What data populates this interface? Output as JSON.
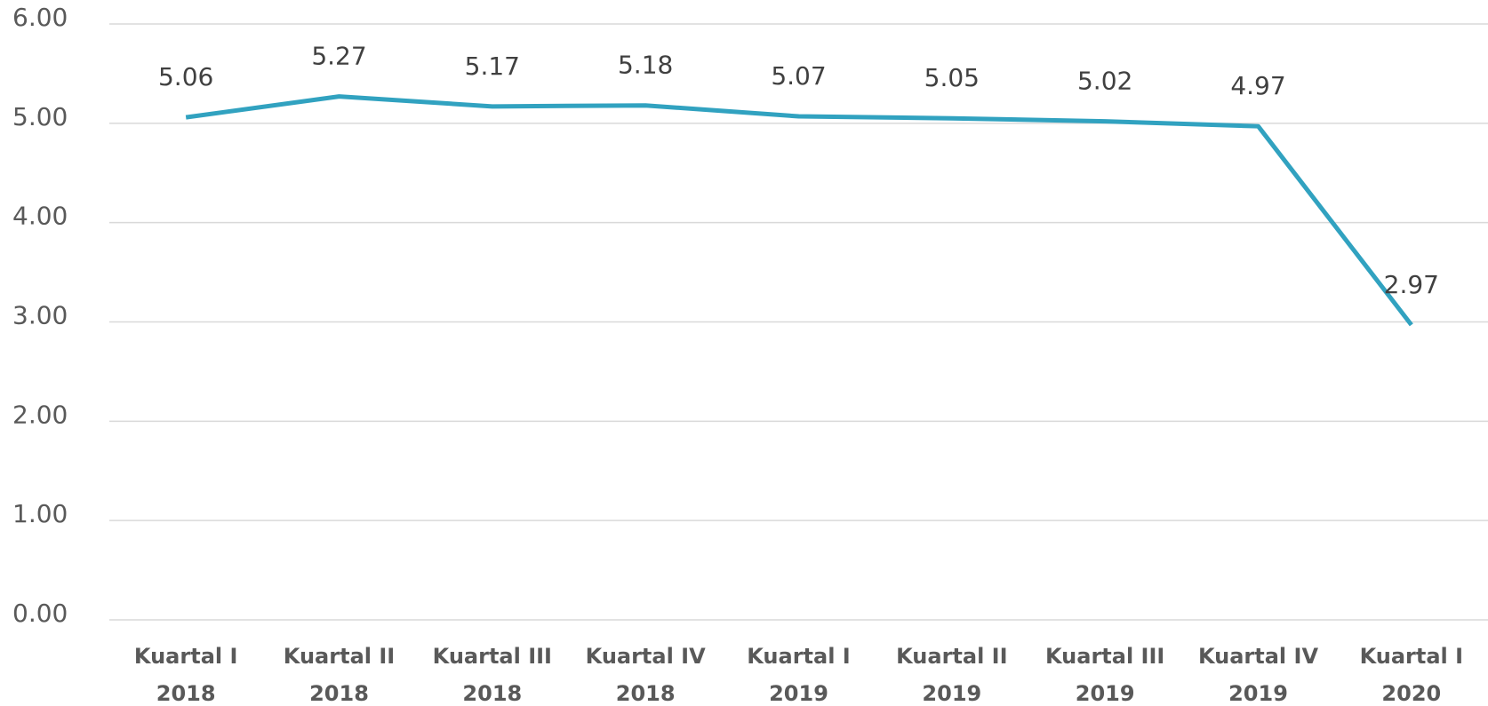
{
  "chart_data": {
    "type": "line",
    "categories": [
      [
        "Kuartal I",
        "2018"
      ],
      [
        "Kuartal II",
        "2018"
      ],
      [
        "Kuartal III",
        "2018"
      ],
      [
        "Kuartal IV",
        "2018"
      ],
      [
        "Kuartal I",
        "2019"
      ],
      [
        "Kuartal II",
        "2019"
      ],
      [
        "Kuartal III",
        "2019"
      ],
      [
        "Kuartal IV",
        "2019"
      ],
      [
        "Kuartal I",
        "2020"
      ]
    ],
    "values": [
      5.06,
      5.27,
      5.17,
      5.18,
      5.07,
      5.05,
      5.02,
      4.97,
      2.97
    ],
    "color": "#31a2c0",
    "ylim": [
      0,
      6
    ],
    "yticks": [
      {
        "value": 0,
        "label": "0.00"
      },
      {
        "value": 1,
        "label": "1.00"
      },
      {
        "value": 2,
        "label": "2.00"
      },
      {
        "value": 3,
        "label": "3.00"
      },
      {
        "value": 4,
        "label": "4.00"
      },
      {
        "value": 5,
        "label": "5.00"
      },
      {
        "value": 6,
        "label": "6.00"
      }
    ],
    "grid": true
  }
}
